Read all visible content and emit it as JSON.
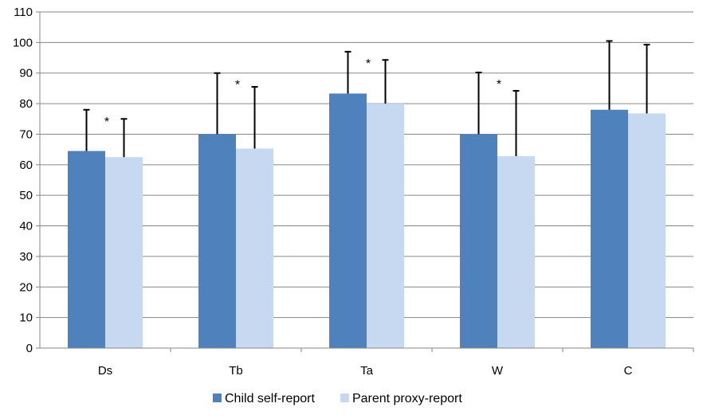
{
  "chart_data": {
    "type": "bar",
    "categories": [
      "Ds",
      "Tb",
      "Ta",
      "W",
      "C"
    ],
    "series": [
      {
        "name": "Child self-report",
        "color": "#4f81bd",
        "values": [
          64.5,
          70,
          83.3,
          70,
          78
        ],
        "error_upper": [
          78,
          90,
          97,
          90.2,
          100.5
        ]
      },
      {
        "name": "Parent proxy-report",
        "color": "#c6d9f1",
        "values": [
          62.5,
          65.3,
          80,
          62.8,
          76.8
        ],
        "error_upper": [
          75,
          85.5,
          94.3,
          84.2,
          99.3
        ]
      }
    ],
    "annotations": [
      {
        "category": "Ds",
        "text": "*"
      },
      {
        "category": "Tb",
        "text": "*"
      },
      {
        "category": "Ta",
        "text": "*"
      },
      {
        "category": "W",
        "text": "*"
      }
    ],
    "ylim": [
      0,
      110
    ],
    "yticks": [
      0,
      10,
      20,
      30,
      40,
      50,
      60,
      70,
      80,
      90,
      100,
      110
    ],
    "grid": true,
    "legend": "bottom"
  }
}
